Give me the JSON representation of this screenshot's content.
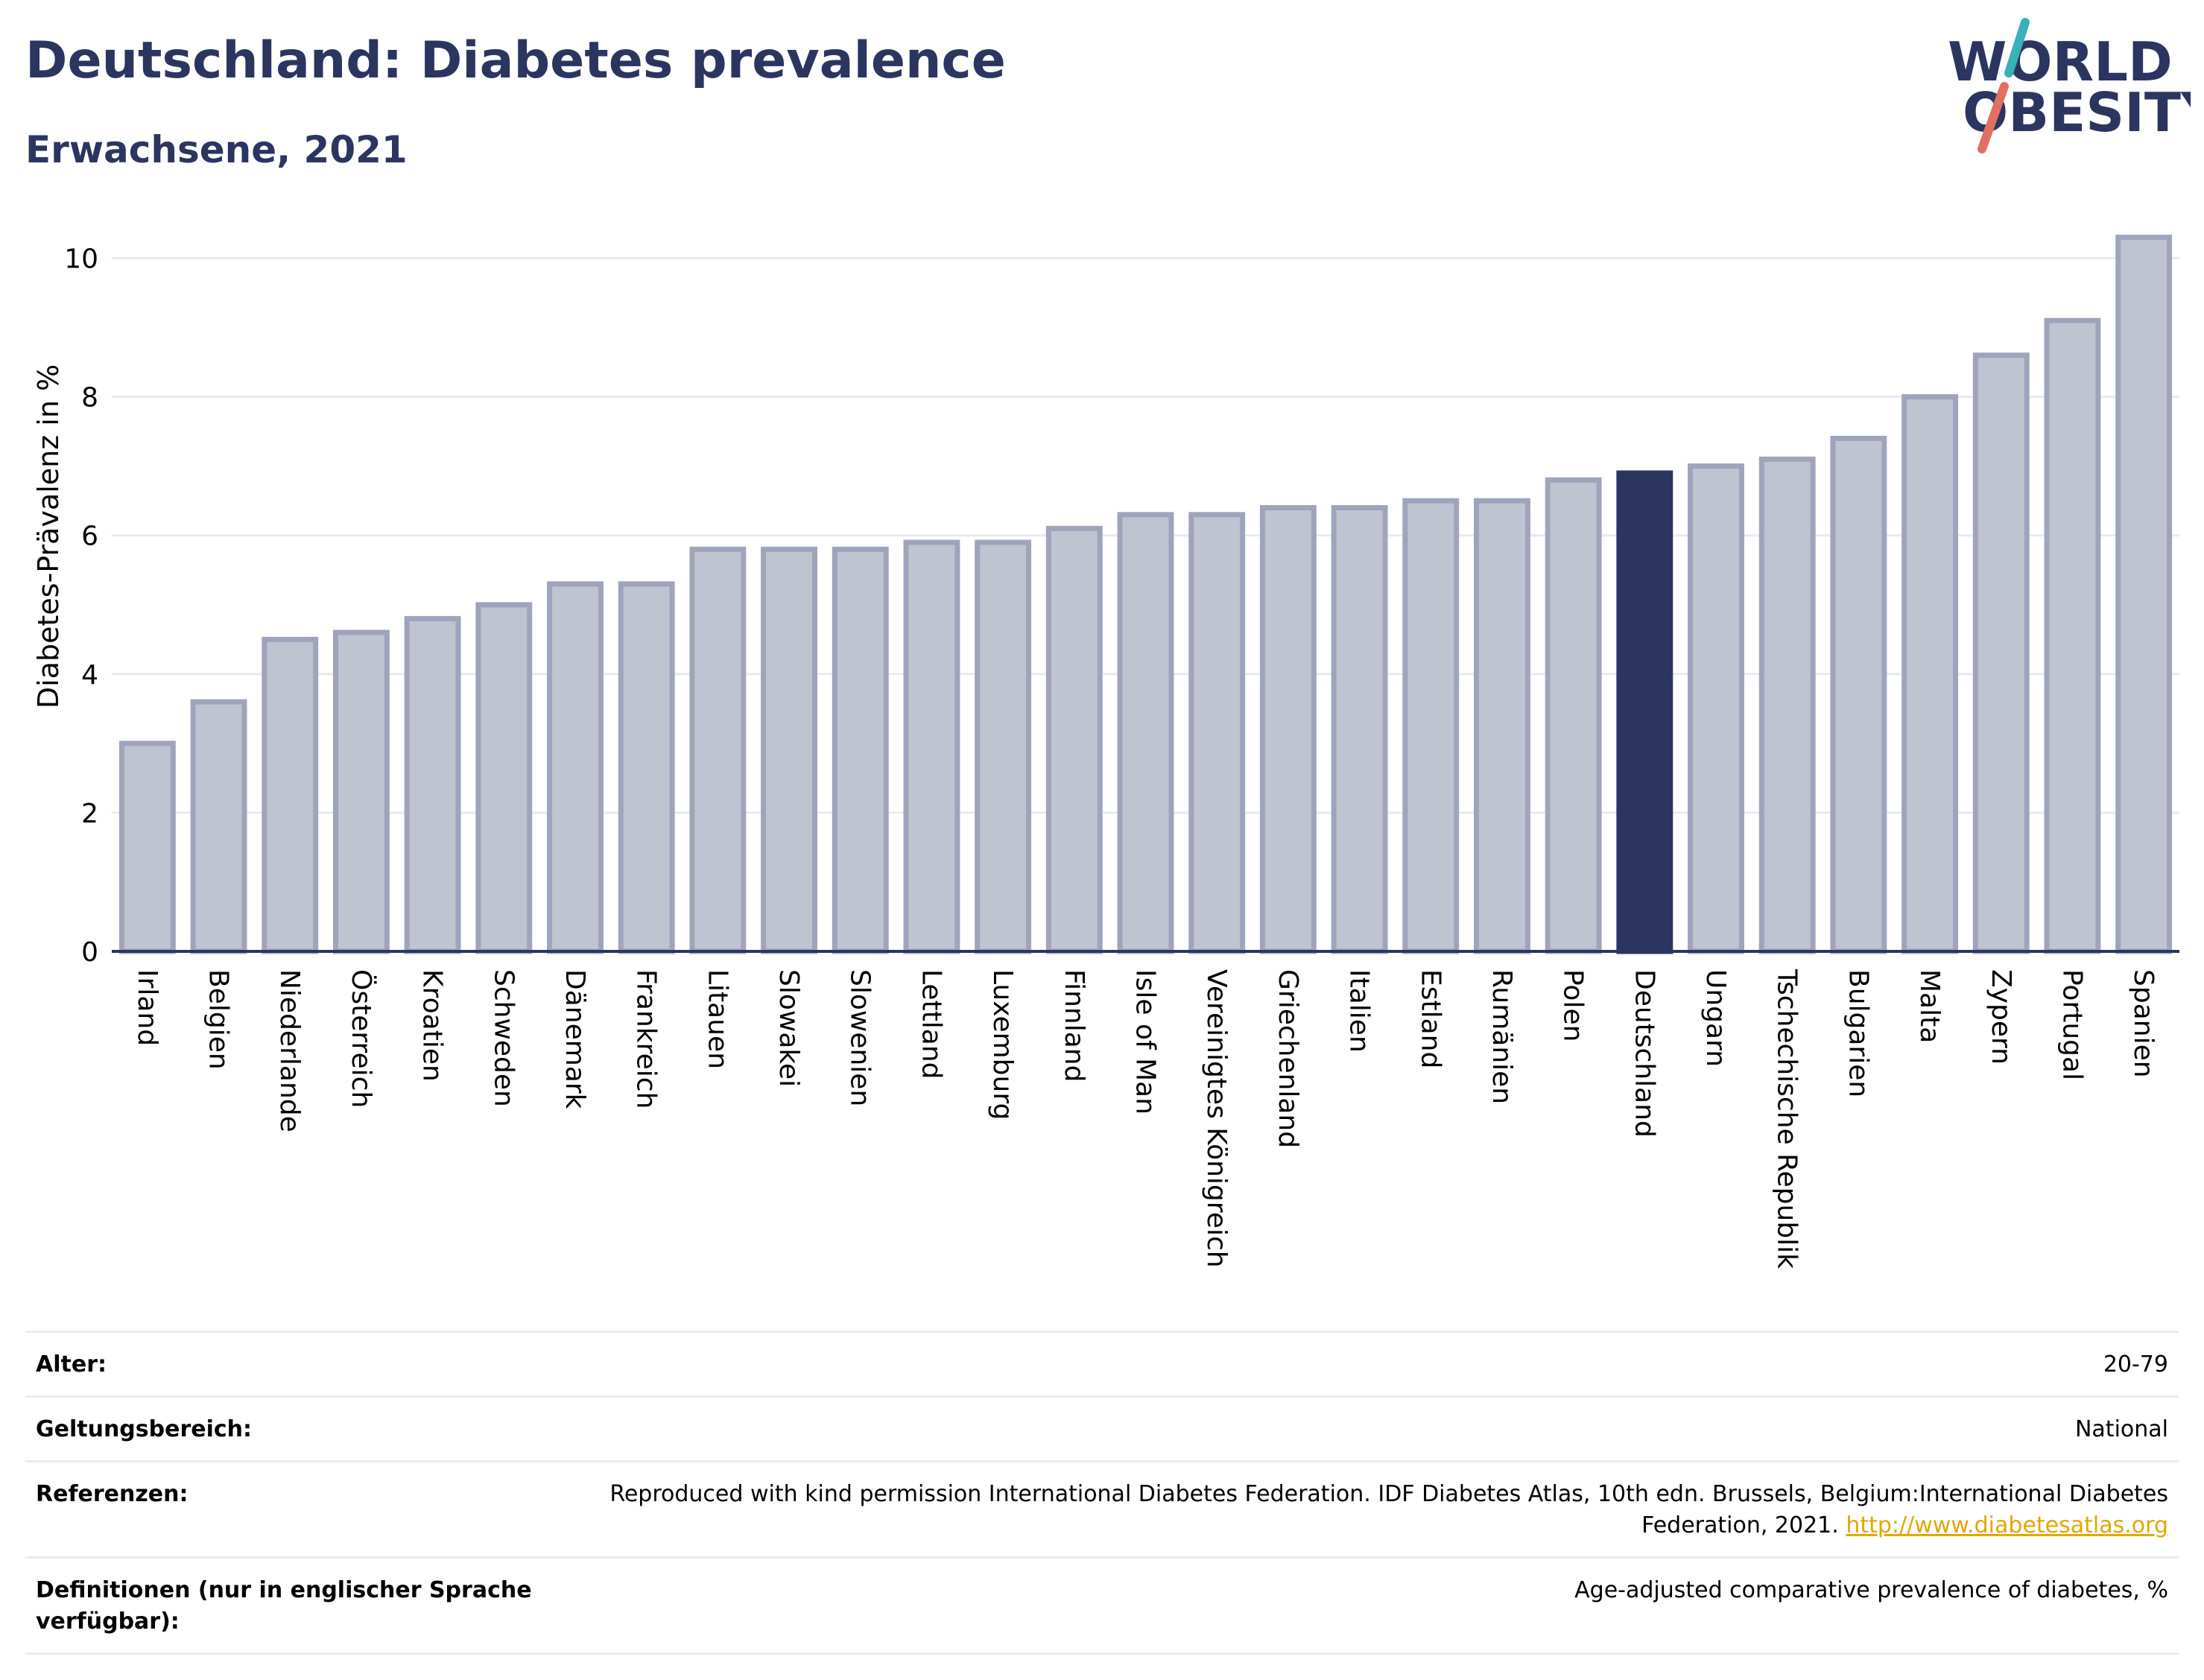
{
  "header": {
    "title": "Deutschland: Diabetes prevalence",
    "subtitle": "Erwachsene, 2021"
  },
  "logo": {
    "line1": "WORLD",
    "line2": "OBESITY",
    "colors": {
      "text": "#2b3560",
      "slash_top": "#3ab0b8",
      "slash_bottom": "#e07060"
    }
  },
  "chart_data": {
    "type": "bar",
    "title": "Deutschland: Diabetes prevalence",
    "subtitle": "Erwachsene, 2021",
    "ylabel": "Diabetes-Prävalenz in %",
    "xlabel": "",
    "ylim": [
      0,
      10.5
    ],
    "yticks": [
      0,
      2,
      4,
      6,
      8,
      10
    ],
    "grid": true,
    "highlight": "Deutschland",
    "colors": {
      "bar": "#c0c3d0",
      "bar_stroke": "#9fa4bc",
      "highlight": "#2b3560",
      "grid": "#e8eaef",
      "axis": "#2b3560"
    },
    "categories": [
      "Irland",
      "Belgien",
      "Niederlande",
      "Österreich",
      "Kroatien",
      "Schweden",
      "Dänemark",
      "Frankreich",
      "Litauen",
      "Slowakei",
      "Slowenien",
      "Lettland",
      "Luxemburg",
      "Finnland",
      "Isle of Man",
      "Vereinigtes Königreich",
      "Griechenland",
      "Italien",
      "Estland",
      "Rumänien",
      "Polen",
      "Deutschland",
      "Ungarn",
      "Tschechische Republik",
      "Bulgarien",
      "Malta",
      "Zypern",
      "Portugal",
      "Spanien"
    ],
    "values": [
      3.0,
      3.6,
      4.5,
      4.6,
      4.8,
      5.0,
      5.3,
      5.3,
      5.8,
      5.8,
      5.8,
      5.9,
      5.9,
      6.1,
      6.3,
      6.3,
      6.4,
      6.4,
      6.5,
      6.5,
      6.8,
      6.9,
      7.0,
      7.1,
      7.4,
      8.0,
      8.6,
      9.1,
      10.3
    ]
  },
  "meta": [
    {
      "label": "Alter:",
      "value": "20-79"
    },
    {
      "label": "Geltungsbereich:",
      "value": "National"
    },
    {
      "label": "Referenzen:",
      "value": "Reproduced with kind permission International Diabetes Federation.  IDF Diabetes Atlas, 10th edn. Brussels, Belgium:International Diabetes Federation, 2021. ",
      "link": "http://www.diabetesatlas.org"
    },
    {
      "label": "Definitionen (nur in englischer Sprache verfügbar):",
      "value": "Age-adjusted comparative prevalence of diabetes, %"
    }
  ]
}
